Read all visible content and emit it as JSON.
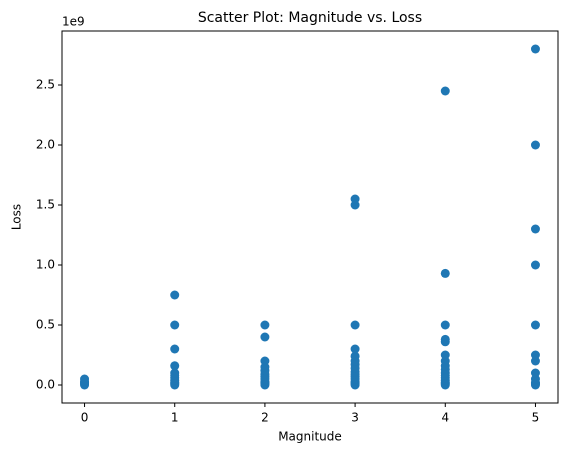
{
  "chart_data": {
    "type": "scatter",
    "title": "Scatter Plot: Magnitude vs. Loss",
    "x_label": "Magnitude",
    "y_label": "Loss",
    "y_offset_label": "1e9",
    "color": "#1f77b4",
    "x": [
      0,
      0,
      0,
      0,
      0,
      1,
      1,
      1,
      1,
      1,
      1,
      1,
      1,
      1,
      1,
      1,
      2,
      2,
      2,
      2,
      2,
      2,
      2,
      2,
      2,
      2,
      2,
      2,
      3,
      3,
      3,
      3,
      3,
      3,
      3,
      3,
      3,
      3,
      3,
      3,
      3,
      3,
      3,
      3,
      4,
      4,
      4,
      4,
      4,
      4,
      4,
      4,
      4,
      4,
      4,
      4,
      4,
      4,
      4,
      4,
      5,
      5,
      5,
      5,
      5,
      5,
      5,
      5,
      5,
      5,
      5,
      5
    ],
    "y": [
      0,
      0.01,
      0.02,
      0.03,
      0.05,
      0,
      0.01,
      0.02,
      0.04,
      0.06,
      0.08,
      0.1,
      0.16,
      0.3,
      0.5,
      0.75,
      0,
      0.01,
      0.02,
      0.03,
      0.05,
      0.07,
      0.09,
      0.12,
      0.15,
      0.2,
      0.4,
      0.5,
      0,
      0.01,
      0.02,
      0.03,
      0.05,
      0.07,
      0.09,
      0.11,
      0.14,
      0.17,
      0.2,
      0.24,
      0.3,
      0.5,
      1.5,
      1.55,
      0,
      0.01,
      0.02,
      0.04,
      0.06,
      0.08,
      0.1,
      0.13,
      0.16,
      0.2,
      0.25,
      0.36,
      0.38,
      0.5,
      0.93,
      2.45,
      0,
      0.01,
      0.02,
      0.05,
      0.1,
      0.2,
      0.25,
      0.5,
      1.0,
      1.3,
      2.0,
      2.8
    ],
    "xlim": [
      -0.25,
      5.25
    ],
    "ylim": [
      -0.15,
      2.95
    ],
    "xticks": [
      0,
      1,
      2,
      3,
      4,
      5
    ],
    "yticks": [
      {
        "value": 0,
        "label": "0.0"
      },
      0.5,
      {
        "value": 1,
        "label": "1.0"
      },
      1.5,
      {
        "value": 2,
        "label": "2.0"
      },
      2.5
    ]
  }
}
